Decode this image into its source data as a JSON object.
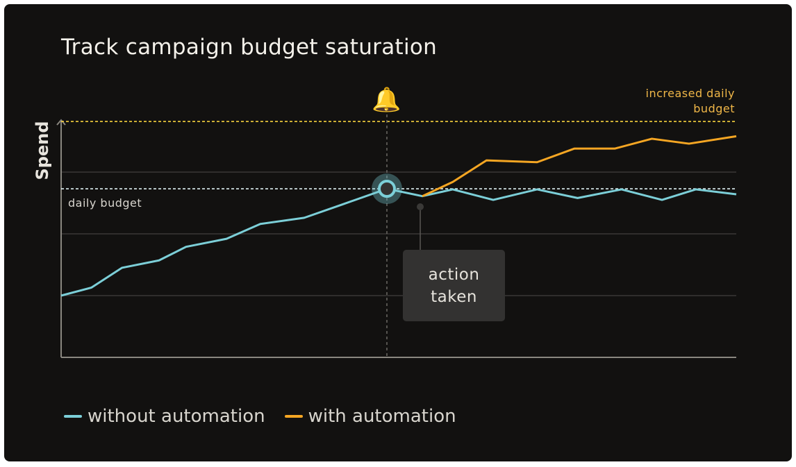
{
  "colors": {
    "without": "#7ccfd8",
    "with": "#f5a623",
    "daily_budget_line": "#dfeff2",
    "increased_budget_line": "#f7d23e",
    "background": "#121110",
    "grid": "#3a3937",
    "axis": "#8a8780"
  },
  "chart_data": {
    "type": "line",
    "title": "Track campaign budget saturation",
    "xlabel": "",
    "ylabel": "Spend",
    "xlim": [
      0,
      20
    ],
    "ylim": [
      0,
      3.82
    ],
    "grid": true,
    "gridlines_y": [
      1,
      2,
      3
    ],
    "legend_position": "bottom-left",
    "series": [
      {
        "name": "without automation",
        "color": "#7ccfd8",
        "x": [
          0,
          0.9,
          1.8,
          2.9,
          3.7,
          4.9,
          5.9,
          7.2,
          8.3,
          9.65,
          10.7,
          11.6,
          12.8,
          14.1,
          15.3,
          16.6,
          17.8,
          18.8,
          20
        ],
        "y": [
          1.0,
          1.13,
          1.45,
          1.57,
          1.79,
          1.92,
          2.16,
          2.26,
          2.47,
          2.73,
          2.61,
          2.72,
          2.55,
          2.72,
          2.58,
          2.72,
          2.55,
          2.72,
          2.64
        ]
      },
      {
        "name": "with automation",
        "color": "#f5a623",
        "x": [
          10.7,
          11.6,
          12.6,
          14.1,
          15.2,
          16.4,
          17.5,
          18.6,
          20
        ],
        "y": [
          2.61,
          2.84,
          3.19,
          3.16,
          3.38,
          3.38,
          3.54,
          3.46,
          3.58
        ]
      }
    ],
    "reference_lines": [
      {
        "label": "daily budget",
        "y": 2.73,
        "color": "#dfeff2"
      },
      {
        "label": "increased daily budget",
        "y": 3.82,
        "color": "#f7d23e"
      }
    ],
    "annotations": {
      "alert_x": 9.65,
      "alert_icon": "bell-icon",
      "action_label": "action taken",
      "action_x": 10.7
    }
  },
  "legend": [
    {
      "label": "without automation",
      "color": "#7ccfd8"
    },
    {
      "label": "with automation",
      "color": "#f5a623"
    }
  ]
}
